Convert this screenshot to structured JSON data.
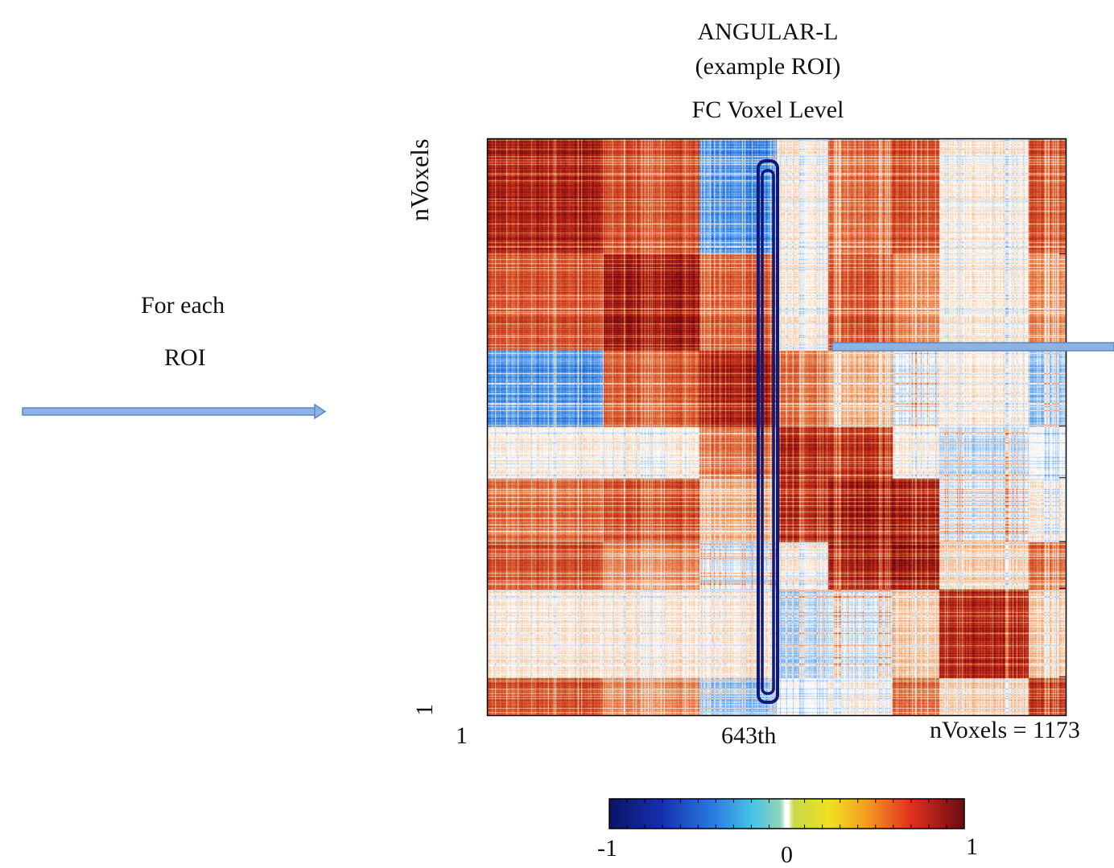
{
  "chart_data": {
    "type": "heatmap",
    "title_lines": [
      "ANGULAR-L",
      "(example ROI)",
      "FC Voxel  Level"
    ],
    "ylabel": "nVoxels",
    "y_tick_bottom": "1",
    "x_tick_labels": [
      "1",
      "643th",
      "nVoxels = 1173"
    ],
    "highlight_column": 643,
    "n_voxels": 1173,
    "value_range": [
      -1,
      1
    ],
    "colorbar": {
      "labels": [
        "-1",
        "0",
        "1"
      ],
      "colormap": "jet-like diverging (blue -> white -> red)"
    },
    "block_boundaries": [
      0,
      235,
      430,
      585,
      690,
      820,
      915,
      1095,
      1173
    ],
    "block_matrix": [
      [
        0.8,
        0.6,
        -0.5,
        0.1,
        0.5,
        0.6,
        0.1,
        0.6
      ],
      [
        0.6,
        0.85,
        0.55,
        0.1,
        0.6,
        0.4,
        0.1,
        0.4
      ],
      [
        -0.5,
        0.55,
        0.8,
        0.5,
        0.3,
        -0.1,
        0.1,
        -0.3
      ],
      [
        0.1,
        0.1,
        0.5,
        0.8,
        0.75,
        0.1,
        -0.2,
        0.0
      ],
      [
        0.5,
        0.6,
        0.3,
        0.75,
        0.85,
        0.8,
        -0.1,
        0.1
      ],
      [
        0.6,
        0.4,
        -0.1,
        0.1,
        0.8,
        0.85,
        0.2,
        0.5
      ],
      [
        0.1,
        0.1,
        0.1,
        -0.2,
        -0.1,
        0.2,
        0.75,
        0.2
      ],
      [
        0.6,
        0.4,
        -0.3,
        0.0,
        0.1,
        0.5,
        0.2,
        0.7
      ]
    ]
  },
  "annotations": {
    "arrow_left_text": [
      "For each",
      "ROI"
    ],
    "arrow_color": "#8db3e2",
    "highlight_box_color": "#1a237e"
  }
}
